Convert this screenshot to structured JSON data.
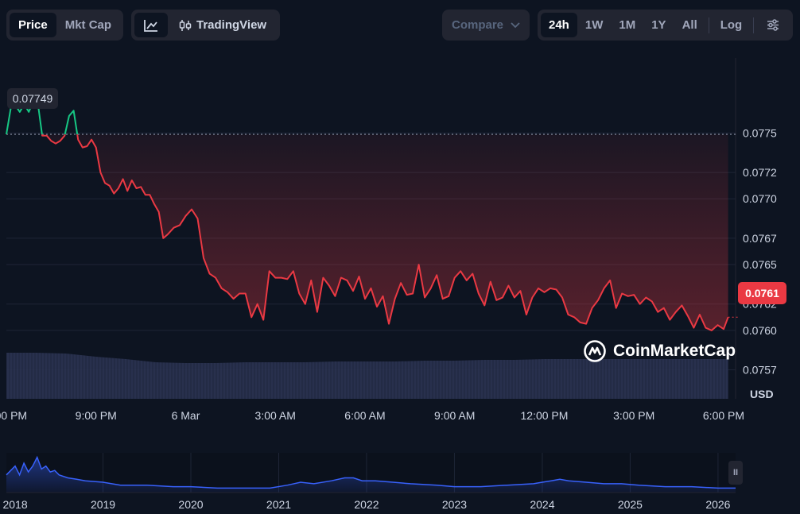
{
  "toolbar": {
    "price_label": "Price",
    "mktcap_label": "Mkt Cap",
    "tradingview_label": "TradingView",
    "compare_label": "Compare",
    "ranges": [
      "24h",
      "1W",
      "1M",
      "1Y",
      "All"
    ],
    "active_range": "24h",
    "log_label": "Log"
  },
  "brand": {
    "name": "CoinMarketCap"
  },
  "colors": {
    "down": "#ea3943",
    "up": "#16c784",
    "volume": "#2a3150",
    "mini_line": "#3861fb",
    "background": "#0d1421"
  },
  "chart_data": {
    "type": "line",
    "currency_label": "USD",
    "open_price": 0.07749,
    "last_price": 0.0761,
    "open_price_label": "0.07749",
    "last_price_label": "0.0761",
    "y_ticks": [
      0.0775,
      0.0772,
      0.077,
      0.0767,
      0.0765,
      0.0762,
      0.076,
      0.0757
    ],
    "y_tick_labels": [
      "0.0775",
      "0.0772",
      "0.0770",
      "0.0767",
      "0.0765",
      "0.0762",
      "0.0760",
      "0.0757"
    ],
    "ylim": [
      0.07548,
      0.07807
    ],
    "x_ticks": [
      0,
      3,
      6,
      9,
      12,
      15,
      18,
      21,
      24
    ],
    "x_tick_labels": [
      "6:00 PM",
      "9:00 PM",
      "6 Mar",
      "3:00 AM",
      "6:00 AM",
      "9:00 AM",
      "12:00 PM",
      "3:00 PM",
      "6:00 PM"
    ],
    "xlim": [
      0,
      24.4
    ],
    "price_series": {
      "x": [
        0,
        0.15,
        0.3,
        0.45,
        0.6,
        0.75,
        0.9,
        1.05,
        1.2,
        1.35,
        1.5,
        1.65,
        1.8,
        1.95,
        2.1,
        2.25,
        2.4,
        2.55,
        2.7,
        2.85,
        3.0,
        3.15,
        3.3,
        3.45,
        3.6,
        3.75,
        3.9,
        4.05,
        4.2,
        4.35,
        4.5,
        4.65,
        4.8,
        4.95,
        5.1,
        5.25,
        5.4,
        5.6,
        5.8,
        6.0,
        6.2,
        6.4,
        6.6,
        6.8,
        7.0,
        7.2,
        7.4,
        7.6,
        7.8,
        8.0,
        8.2,
        8.4,
        8.6,
        8.8,
        9.0,
        9.2,
        9.4,
        9.6,
        9.8,
        10.0,
        10.2,
        10.4,
        10.6,
        10.8,
        11.0,
        11.2,
        11.4,
        11.6,
        11.8,
        12.0,
        12.2,
        12.4,
        12.6,
        12.8,
        13.0,
        13.2,
        13.4,
        13.6,
        13.8,
        14.0,
        14.2,
        14.4,
        14.6,
        14.8,
        15.0,
        15.2,
        15.4,
        15.6,
        15.8,
        16.0,
        16.2,
        16.4,
        16.6,
        16.8,
        17.0,
        17.2,
        17.4,
        17.6,
        17.8,
        18.0,
        18.2,
        18.4,
        18.6,
        18.8,
        19.0,
        19.2,
        19.4,
        19.6,
        19.8,
        20.0,
        20.2,
        20.4,
        20.6,
        20.8,
        21.0,
        21.2,
        21.4,
        21.6,
        21.8,
        22.0,
        22.2,
        22.4,
        22.6,
        22.8,
        23.0,
        23.2,
        23.4,
        23.6,
        23.8,
        24.0,
        24.15
      ],
      "values": [
        0.07749,
        0.07769,
        0.07771,
        0.07766,
        0.07772,
        0.07766,
        0.07774,
        0.07773,
        0.07748,
        0.07748,
        0.07744,
        0.07742,
        0.07744,
        0.07748,
        0.07763,
        0.07767,
        0.07745,
        0.07739,
        0.0774,
        0.07745,
        0.07739,
        0.0772,
        0.07712,
        0.0771,
        0.07704,
        0.07708,
        0.07715,
        0.07706,
        0.07714,
        0.07708,
        0.07709,
        0.07703,
        0.07703,
        0.07696,
        0.0769,
        0.0767,
        0.07673,
        0.07678,
        0.0768,
        0.07687,
        0.07692,
        0.07685,
        0.07655,
        0.07643,
        0.0764,
        0.07632,
        0.07629,
        0.07624,
        0.07628,
        0.07628,
        0.0761,
        0.0762,
        0.07608,
        0.07645,
        0.0764,
        0.0764,
        0.07639,
        0.07645,
        0.07628,
        0.0762,
        0.07638,
        0.07614,
        0.0764,
        0.07634,
        0.07626,
        0.0764,
        0.07638,
        0.0763,
        0.07641,
        0.07624,
        0.07632,
        0.07618,
        0.07626,
        0.07605,
        0.07624,
        0.07636,
        0.07627,
        0.07628,
        0.0765,
        0.07625,
        0.07632,
        0.07642,
        0.07624,
        0.07626,
        0.0764,
        0.07645,
        0.07638,
        0.07643,
        0.07628,
        0.07619,
        0.07637,
        0.07623,
        0.07625,
        0.07634,
        0.07625,
        0.0763,
        0.07612,
        0.07625,
        0.07632,
        0.07629,
        0.07632,
        0.07631,
        0.07625,
        0.07612,
        0.0761,
        0.07606,
        0.07605,
        0.07617,
        0.07623,
        0.07632,
        0.07638,
        0.07617,
        0.07628,
        0.07626,
        0.07627,
        0.0762,
        0.07625,
        0.07622,
        0.07614,
        0.07617,
        0.07608,
        0.07614,
        0.07619,
        0.07611,
        0.07602,
        0.07612,
        0.07602,
        0.076,
        0.07604,
        0.07601,
        0.0761
      ]
    },
    "volume_series": {
      "x": [
        0,
        1,
        2,
        3,
        4,
        5,
        6,
        7,
        8,
        9,
        10,
        11,
        12,
        13,
        14,
        15,
        16,
        17,
        18,
        19,
        20,
        21,
        22,
        23,
        24.15
      ],
      "values": [
        58,
        58,
        57,
        53,
        50,
        46,
        45,
        45,
        46,
        46,
        46,
        47,
        47,
        47,
        48,
        48,
        49,
        49,
        50,
        50,
        50,
        50,
        50,
        50,
        50
      ]
    },
    "overview": {
      "x_ticks": [
        2018,
        2019,
        2020,
        2021,
        2022,
        2023,
        2024,
        2025,
        2026
      ],
      "x_tick_labels": [
        "2018",
        "2019",
        "2020",
        "2021",
        "2022",
        "2023",
        "2024",
        "2025",
        "2026"
      ],
      "xlim": [
        2017.9,
        2026.2
      ],
      "x": [
        2017.9,
        2018.0,
        2018.05,
        2018.1,
        2018.15,
        2018.2,
        2018.25,
        2018.3,
        2018.35,
        2018.4,
        2018.45,
        2018.5,
        2018.6,
        2018.7,
        2018.8,
        2019.0,
        2019.2,
        2019.5,
        2019.8,
        2020.0,
        2020.3,
        2020.6,
        2020.9,
        2021.1,
        2021.25,
        2021.4,
        2021.6,
        2021.75,
        2021.85,
        2021.95,
        2022.1,
        2022.3,
        2022.5,
        2022.8,
        2023.0,
        2023.3,
        2023.6,
        2023.9,
        2024.0,
        2024.1,
        2024.2,
        2024.3,
        2024.5,
        2024.7,
        2024.9,
        2025.1,
        2025.4,
        2025.7,
        2026.0,
        2026.2
      ],
      "values": [
        0.12,
        0.18,
        0.12,
        0.2,
        0.14,
        0.18,
        0.24,
        0.16,
        0.18,
        0.14,
        0.15,
        0.12,
        0.1,
        0.09,
        0.08,
        0.07,
        0.05,
        0.05,
        0.04,
        0.04,
        0.03,
        0.03,
        0.03,
        0.05,
        0.07,
        0.06,
        0.08,
        0.1,
        0.1,
        0.08,
        0.08,
        0.07,
        0.06,
        0.05,
        0.04,
        0.04,
        0.05,
        0.06,
        0.07,
        0.08,
        0.09,
        0.08,
        0.07,
        0.06,
        0.06,
        0.05,
        0.04,
        0.04,
        0.03,
        0.03
      ]
    }
  }
}
